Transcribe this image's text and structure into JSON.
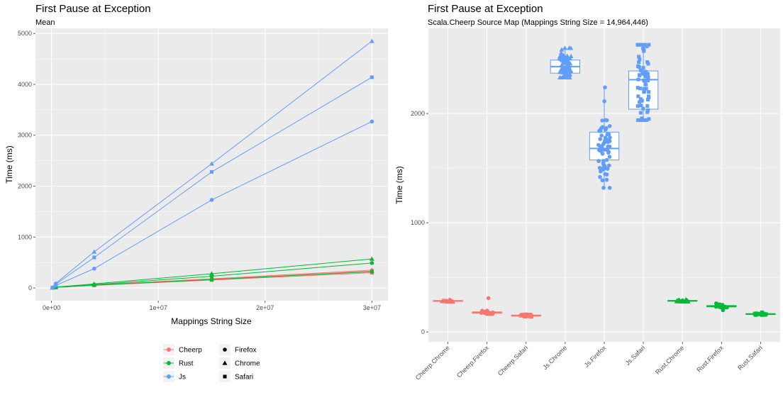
{
  "colors": {
    "Cheerp": "#F8766D",
    "Rust": "#00BA38",
    "Js": "#619CFF",
    "panel": "#EBEBEB",
    "grid": "#FFFFFF"
  },
  "chart_data": [
    {
      "type": "line",
      "title": "First Pause at Exception",
      "subtitle": "Mean",
      "xlabel": "Mappings String Size",
      "ylabel": "Time (ms)",
      "xlim": [
        -1500000,
        31500000
      ],
      "ylim": [
        -250,
        5100
      ],
      "x_ticks": [
        0,
        10000000,
        20000000,
        30000000
      ],
      "x_tick_labels": [
        "0e+00",
        "1e+07",
        "2e+07",
        "3e+07"
      ],
      "y_ticks": [
        0,
        1000,
        2000,
        3000,
        4000,
        5000
      ],
      "y_tick_labels": [
        "0",
        "1000",
        "2000",
        "3000",
        "4000",
        "5000"
      ],
      "grid": true,
      "x": [
        100000,
        400000,
        4000000,
        15000000,
        30000000
      ],
      "series": [
        {
          "name": "Cheerp",
          "browser": "Firefox",
          "values": [
            5,
            12,
            60,
            180,
            350
          ]
        },
        {
          "name": "Cheerp",
          "browser": "Chrome",
          "values": [
            5,
            12,
            55,
            170,
            330
          ]
        },
        {
          "name": "Cheerp",
          "browser": "Safari",
          "values": [
            5,
            10,
            50,
            155,
            300
          ]
        },
        {
          "name": "Rust",
          "browser": "Firefox",
          "values": [
            5,
            15,
            65,
            230,
            490
          ]
        },
        {
          "name": "Rust",
          "browser": "Chrome",
          "values": [
            5,
            18,
            80,
            280,
            570
          ]
        },
        {
          "name": "Rust",
          "browser": "Safari",
          "values": [
            5,
            10,
            55,
            165,
            320
          ]
        },
        {
          "name": "Js",
          "browser": "Firefox",
          "values": [
            5,
            50,
            380,
            1730,
            3270
          ]
        },
        {
          "name": "Js",
          "browser": "Chrome",
          "values": [
            5,
            90,
            710,
            2440,
            4850
          ]
        },
        {
          "name": "Js",
          "browser": "Safari",
          "values": [
            5,
            75,
            600,
            2280,
            4140
          ]
        }
      ],
      "legend": {
        "placement": "bottom",
        "languages": [
          "Cheerp",
          "Rust",
          "Js"
        ],
        "browsers": [
          "Firefox",
          "Chrome",
          "Safari"
        ]
      }
    },
    {
      "type": "box",
      "title": "First Pause at Exception",
      "subtitle": "Scala.Cheerp Source Map (Mappings String Size = 14,964,446)",
      "xlabel": "",
      "ylabel": "Time (ms)",
      "ylim": [
        -90,
        2780
      ],
      "y_ticks": [
        0,
        1000,
        2000
      ],
      "y_tick_labels": [
        "0",
        "1000",
        "2000"
      ],
      "grid": true,
      "categories": [
        "Cheerp.Chrome",
        "Cheerp.Firefox",
        "Cheerp.Safari",
        "Js.Chrome",
        "Js.Firefox",
        "Js.Safari",
        "Rust.Chrome",
        "Rust.Firefox",
        "Rust.Safari"
      ],
      "boxes": [
        {
          "category": "Cheerp.Chrome",
          "language": "Cheerp",
          "browser": "Chrome",
          "min": 276,
          "q1": 280,
          "median": 284,
          "q3": 288,
          "max": 295,
          "outliers": []
        },
        {
          "category": "Cheerp.Firefox",
          "language": "Cheerp",
          "browser": "Firefox",
          "min": 165,
          "q1": 172,
          "median": 178,
          "q3": 184,
          "max": 195,
          "outliers": [
            310
          ]
        },
        {
          "category": "Cheerp.Safari",
          "language": "Cheerp",
          "browser": "Safari",
          "min": 140,
          "q1": 145,
          "median": 150,
          "q3": 155,
          "max": 162,
          "outliers": []
        },
        {
          "category": "Js.Chrome",
          "language": "Js",
          "browser": "Chrome",
          "min": 2330,
          "q1": 2370,
          "median": 2430,
          "q3": 2490,
          "max": 2600,
          "outliers": []
        },
        {
          "category": "Js.Firefox",
          "language": "Js",
          "browser": "Firefox",
          "min": 1320,
          "q1": 1575,
          "median": 1680,
          "q3": 1830,
          "max": 2240,
          "outliers": []
        },
        {
          "category": "Js.Safari",
          "language": "Js",
          "browser": "Safari",
          "min": 1940,
          "q1": 2040,
          "median": 2310,
          "q3": 2390,
          "max": 2630,
          "outliers": []
        },
        {
          "category": "Rust.Chrome",
          "language": "Rust",
          "browser": "Chrome",
          "min": 278,
          "q1": 282,
          "median": 285,
          "q3": 289,
          "max": 296,
          "outliers": []
        },
        {
          "category": "Rust.Firefox",
          "language": "Rust",
          "browser": "Firefox",
          "min": 225,
          "q1": 230,
          "median": 236,
          "q3": 242,
          "max": 262,
          "outliers": [
            200
          ]
        },
        {
          "category": "Rust.Safari",
          "language": "Rust",
          "browser": "Safari",
          "min": 155,
          "q1": 160,
          "median": 164,
          "q3": 168,
          "max": 180,
          "outliers": []
        }
      ]
    }
  ]
}
